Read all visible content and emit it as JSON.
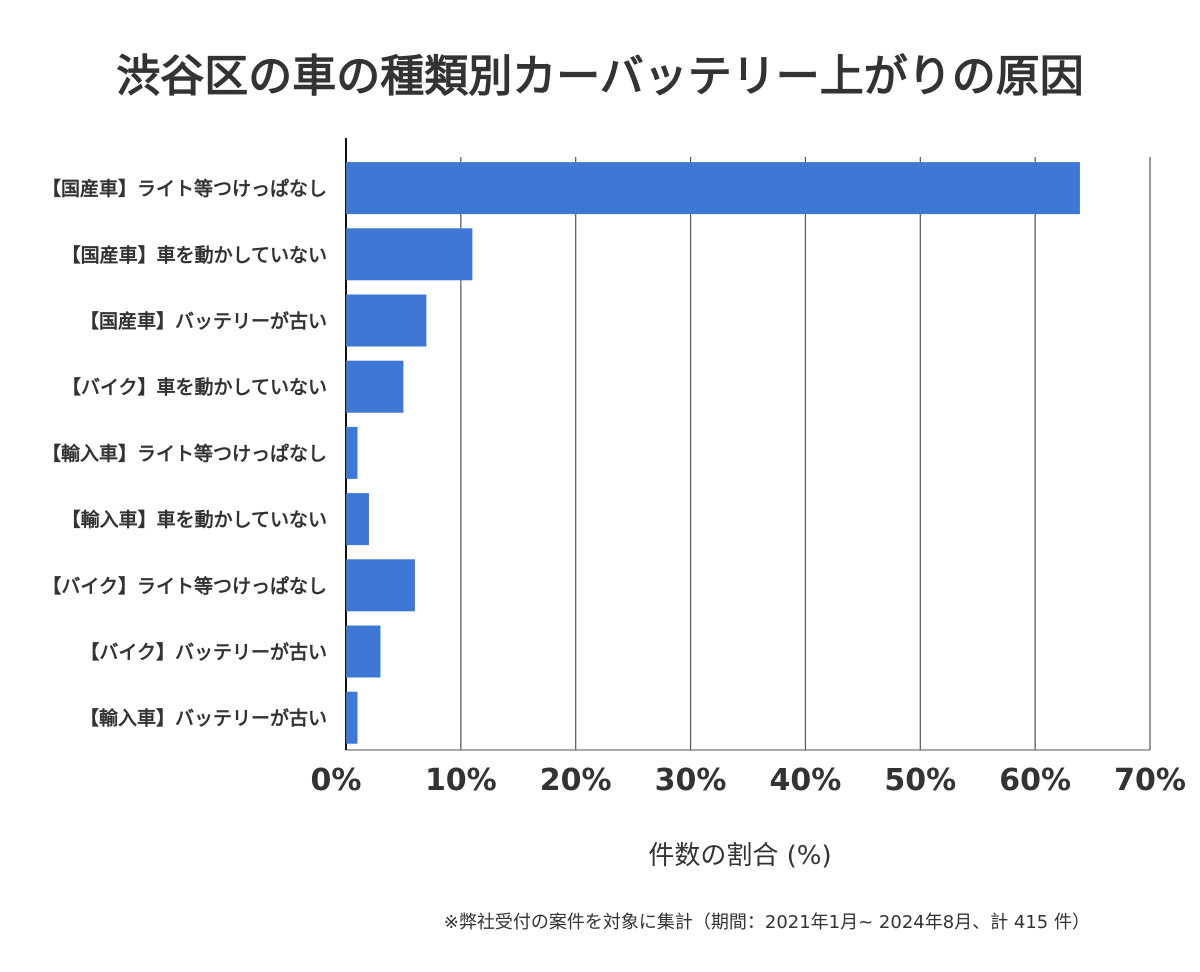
{
  "chart_data": {
    "type": "bar",
    "orientation": "horizontal",
    "title": "渋谷区の車の種類別カーバッテリー上がりの原因",
    "xlabel": "件数の割合 (%)",
    "ylabel": "",
    "categories": [
      "【国産車】ライト等つけっぱなし",
      "【国産車】車を動かしていない",
      "【国産車】バッテリーが古い",
      "【バイク】車を動かしていない",
      "【輸入車】ライト等つけっぱなし",
      "【輸入車】車を動かしていない",
      "【バイク】ライト等つけっぱなし",
      "【バイク】バッテリーが古い",
      "【輸入車】バッテリーが古い"
    ],
    "values": [
      63.9,
      11.0,
      7.0,
      5.0,
      1.0,
      2.0,
      6.0,
      3.0,
      1.0
    ],
    "xlim": [
      0,
      70
    ],
    "xticks": [
      "0%",
      "10%",
      "20%",
      "30%",
      "40%",
      "50%",
      "60%",
      "70%"
    ],
    "grid": true,
    "legend": "none",
    "bar_color": "#3e78d4",
    "note": "※弊社受付の案件を対象に集計（期間：2021年1月~ 2024年8月、計 415 件）"
  }
}
